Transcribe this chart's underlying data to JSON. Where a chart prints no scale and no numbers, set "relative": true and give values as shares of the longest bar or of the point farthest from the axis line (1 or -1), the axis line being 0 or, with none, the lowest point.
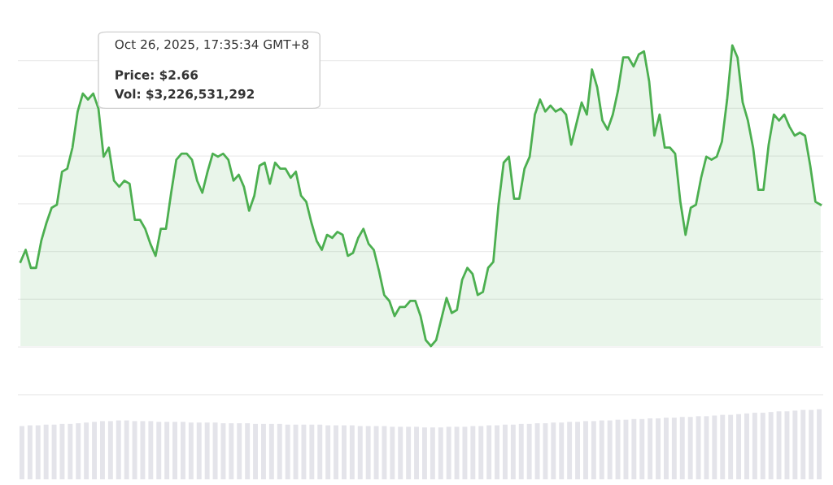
{
  "chart_data": [
    {
      "type": "area",
      "relative": true,
      "grid": "y",
      "line_style": "solid",
      "marker": "none",
      "categories": [
        null,
        null,
        null,
        null,
        null,
        null,
        null,
        null,
        null,
        null,
        null,
        null,
        null,
        null,
        null,
        null,
        null,
        null,
        null,
        null,
        null,
        null,
        null,
        null,
        null,
        null,
        null,
        null,
        null,
        null,
        null,
        null,
        null,
        null,
        null,
        null,
        null,
        null,
        null,
        null,
        null,
        null,
        null,
        null,
        null,
        null,
        null,
        null,
        null,
        null,
        null,
        null,
        null,
        null,
        null,
        null,
        null,
        null,
        null,
        null,
        null,
        null,
        null,
        null,
        null,
        null,
        null,
        null,
        null,
        null,
        null,
        null,
        null,
        null,
        null,
        null,
        null,
        null,
        null,
        null,
        null,
        null,
        null,
        null,
        null,
        null,
        null,
        null,
        null,
        null,
        null,
        null,
        null,
        null,
        null,
        null,
        null,
        null,
        null,
        null,
        null,
        null,
        null,
        null,
        null,
        null,
        null,
        null,
        null,
        null,
        null,
        null,
        null,
        null,
        null,
        null,
        null,
        null,
        null,
        null,
        null,
        null,
        null,
        null,
        null,
        null,
        null,
        null,
        null,
        null,
        null,
        null,
        null,
        null,
        null,
        null,
        null,
        null,
        null,
        null,
        null,
        null,
        null,
        null,
        null,
        null,
        null,
        null,
        null,
        null,
        null,
        null,
        null,
        null,
        null
      ],
      "series": [
        {
          "color": "#4caf50",
          "values": [
            0.28,
            0.32,
            0.26,
            0.26,
            0.35,
            0.41,
            0.46,
            0.47,
            0.58,
            0.59,
            0.66,
            0.78,
            0.84,
            0.82,
            0.84,
            0.79,
            0.63,
            0.66,
            0.55,
            0.53,
            0.55,
            0.54,
            0.42,
            0.42,
            0.39,
            0.34,
            0.3,
            0.39,
            0.39,
            0.51,
            0.62,
            0.64,
            0.64,
            0.62,
            0.55,
            0.51,
            0.58,
            0.64,
            0.63,
            0.64,
            0.62,
            0.55,
            0.57,
            0.53,
            0.45,
            0.5,
            0.6,
            0.61,
            0.54,
            0.61,
            0.59,
            0.59,
            0.56,
            0.58,
            0.5,
            0.48,
            0.41,
            0.35,
            0.32,
            0.37,
            0.36,
            0.38,
            0.37,
            0.3,
            0.31,
            0.36,
            0.39,
            0.34,
            0.32,
            0.25,
            0.17,
            0.15,
            0.1,
            0.13,
            0.13,
            0.15,
            0.15,
            0.1,
            0.02,
            0,
            0.02,
            0.09,
            0.16,
            0.11,
            0.12,
            0.22,
            0.26,
            0.24,
            0.17,
            0.18,
            0.26,
            0.28,
            0.47,
            0.61,
            0.63,
            0.49,
            0.49,
            0.59,
            0.63,
            0.77,
            0.82,
            0.78,
            0.8,
            0.78,
            0.79,
            0.77,
            0.67,
            0.74,
            0.81,
            0.77,
            0.92,
            0.86,
            0.75,
            0.72,
            0.77,
            0.85,
            0.96,
            0.96,
            0.93,
            0.97,
            0.98,
            0.88,
            0.7,
            0.77,
            0.66,
            0.66,
            0.64,
            0.48,
            0.37,
            0.46,
            0.47,
            0.56,
            0.63,
            0.62,
            0.63,
            0.68,
            0.82,
            1,
            0.96,
            0.81,
            0.75,
            0.66,
            0.52,
            0.52,
            0.67,
            0.77,
            0.75,
            0.77,
            0.73,
            0.7,
            0.71,
            0.7,
            0.6,
            0.48,
            0.47
          ]
        }
      ],
      "annotations": [
        "Oct 26, 2025, 17:35:34 GMT+8",
        "Price: $2.66",
        "Vol: $3,226,531,292"
      ]
    },
    {
      "type": "bar",
      "relative": true,
      "color": "#e4e4ea",
      "categories": [
        null,
        null,
        null,
        null,
        null,
        null,
        null,
        null,
        null,
        null,
        null,
        null,
        null,
        null,
        null,
        null,
        null,
        null,
        null,
        null,
        null,
        null,
        null,
        null,
        null,
        null,
        null,
        null,
        null,
        null,
        null,
        null,
        null,
        null,
        null,
        null,
        null,
        null,
        null,
        null,
        null,
        null,
        null,
        null,
        null,
        null,
        null,
        null,
        null,
        null,
        null,
        null,
        null,
        null,
        null,
        null,
        null,
        null,
        null,
        null,
        null,
        null,
        null,
        null,
        null,
        null,
        null,
        null,
        null,
        null,
        null,
        null,
        null,
        null,
        null,
        null,
        null,
        null,
        null,
        null,
        null,
        null,
        null,
        null,
        null,
        null,
        null,
        null,
        null,
        null,
        null,
        null,
        null,
        null,
        null,
        null,
        null,
        null,
        null,
        null
      ],
      "values": [
        0.76,
        0.77,
        0.77,
        0.78,
        0.78,
        0.79,
        0.79,
        0.8,
        0.81,
        0.82,
        0.83,
        0.83,
        0.84,
        0.84,
        0.83,
        0.83,
        0.83,
        0.82,
        0.82,
        0.82,
        0.82,
        0.81,
        0.81,
        0.81,
        0.81,
        0.8,
        0.8,
        0.8,
        0.8,
        0.79,
        0.79,
        0.79,
        0.79,
        0.78,
        0.78,
        0.78,
        0.78,
        0.78,
        0.77,
        0.77,
        0.77,
        0.77,
        0.76,
        0.76,
        0.76,
        0.76,
        0.75,
        0.75,
        0.75,
        0.75,
        0.74,
        0.74,
        0.74,
        0.75,
        0.75,
        0.75,
        0.76,
        0.76,
        0.77,
        0.77,
        0.78,
        0.78,
        0.79,
        0.79,
        0.8,
        0.8,
        0.81,
        0.81,
        0.82,
        0.82,
        0.83,
        0.83,
        0.84,
        0.84,
        0.85,
        0.85,
        0.86,
        0.86,
        0.87,
        0.87,
        0.88,
        0.88,
        0.89,
        0.89,
        0.9,
        0.9,
        0.91,
        0.92,
        0.92,
        0.93,
        0.94,
        0.95,
        0.95,
        0.96,
        0.97,
        0.97,
        0.98,
        0.99,
        0.99,
        1.0
      ]
    }
  ]
}
